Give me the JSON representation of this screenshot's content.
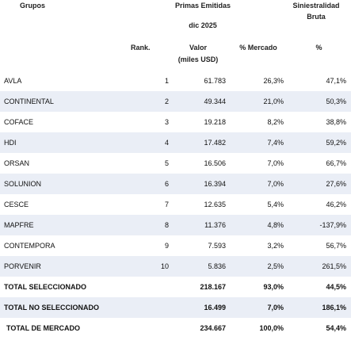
{
  "headers": {
    "grupos": "Grupos",
    "primas": "Primas Emitidas",
    "period": "dic 2025",
    "siniestralidad_line1": "Siniestralidad",
    "siniestralidad_line2": "Bruta",
    "rank": "Rank.",
    "valor_line1": "Valor",
    "valor_line2": "(miles USD)",
    "mercado": "% Mercado",
    "pct": "%"
  },
  "rows": [
    {
      "name": "AVLA",
      "rank": "1",
      "valor": "61.783",
      "mercado": "26,3%",
      "siniestralidad": "47,1%"
    },
    {
      "name": "CONTINENTAL",
      "rank": "2",
      "valor": "49.344",
      "mercado": "21,0%",
      "siniestralidad": "50,3%"
    },
    {
      "name": "COFACE",
      "rank": "3",
      "valor": "19.218",
      "mercado": "8,2%",
      "siniestralidad": "38,8%"
    },
    {
      "name": "HDI",
      "rank": "4",
      "valor": "17.482",
      "mercado": "7,4%",
      "siniestralidad": "59,2%"
    },
    {
      "name": "ORSAN",
      "rank": "5",
      "valor": "16.506",
      "mercado": "7,0%",
      "siniestralidad": "66,7%"
    },
    {
      "name": "SOLUNION",
      "rank": "6",
      "valor": "16.394",
      "mercado": "7,0%",
      "siniestralidad": "27,6%"
    },
    {
      "name": "CESCE",
      "rank": "7",
      "valor": "12.635",
      "mercado": "5,4%",
      "siniestralidad": "46,2%"
    },
    {
      "name": "MAPFRE",
      "rank": "8",
      "valor": "11.376",
      "mercado": "4,8%",
      "siniestralidad": "-137,9%"
    },
    {
      "name": "CONTEMPORA",
      "rank": "9",
      "valor": "7.593",
      "mercado": "3,2%",
      "siniestralidad": "56,7%"
    },
    {
      "name": "PORVENIR",
      "rank": "10",
      "valor": "5.836",
      "mercado": "2,5%",
      "siniestralidad": "261,5%"
    }
  ],
  "totals": [
    {
      "name": "TOTAL SELECCIONADO",
      "valor": "218.167",
      "mercado": "93,0%",
      "siniestralidad": "44,5%"
    },
    {
      "name": "TOTAL NO SELECCIONADO",
      "valor": "16.499",
      "mercado": "7,0%",
      "siniestralidad": "186,1%"
    },
    {
      "name": "TOTAL DE MERCADO",
      "valor": "234.667",
      "mercado": "100,0%",
      "siniestralidad": "54,4%"
    }
  ],
  "colors": {
    "row_shade": "#eaeef6",
    "text": "#111111"
  }
}
